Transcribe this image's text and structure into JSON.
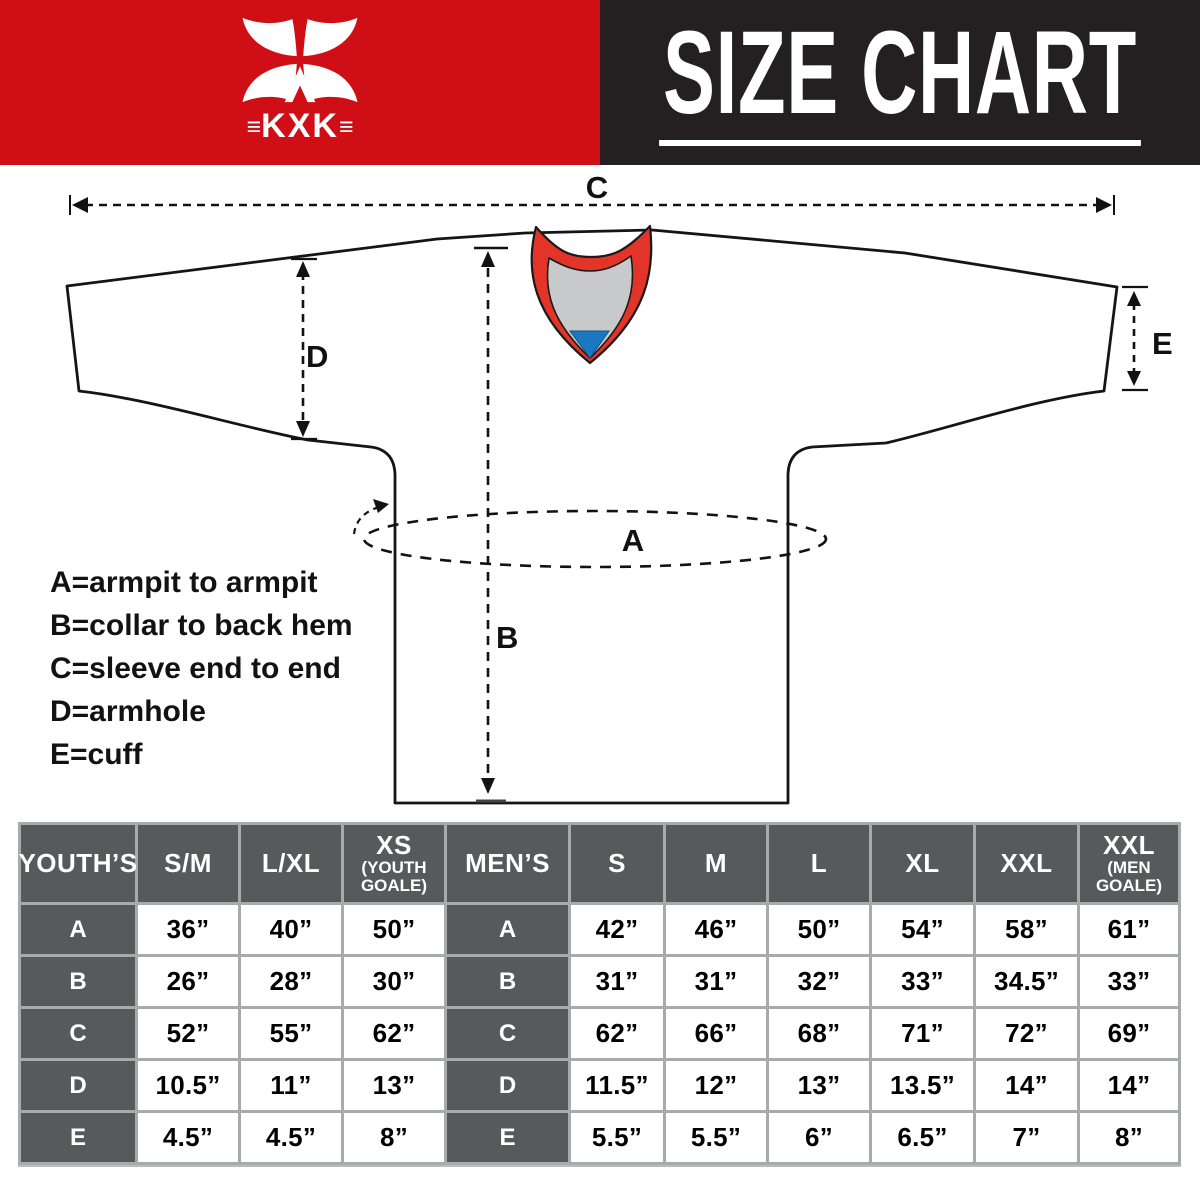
{
  "header": {
    "brand": "KXK",
    "brand_bar": "≡",
    "title": "SIZE CHART"
  },
  "colors": {
    "header_red": "#cf0e15",
    "header_black": "#241f20",
    "collar_red": "#e3342a",
    "collar_gray": "#c8c9ca",
    "collar_blue": "#1a78c2",
    "table_header_gray": "#58595b",
    "table_grid_gray": "#a8aaad"
  },
  "diagram": {
    "labels": {
      "a": "A",
      "b": "B",
      "c": "C",
      "d": "D",
      "e": "E"
    }
  },
  "legend": {
    "lines": [
      "A=armpit to armpit",
      "B=collar to back hem",
      "C=sleeve end to end",
      "D=armhole",
      "E=cuff"
    ]
  },
  "table": {
    "columns": [
      {
        "label": "YOUTH’S"
      },
      {
        "label": "S/M"
      },
      {
        "label": "L/XL"
      },
      {
        "label": "XS",
        "sub": "(YOUTH GOALE)"
      },
      {
        "label": "MEN’S"
      },
      {
        "label": "S"
      },
      {
        "label": "M"
      },
      {
        "label": "L"
      },
      {
        "label": "XL"
      },
      {
        "label": "XXL"
      },
      {
        "label": "XXL",
        "sub": "(MEN GOALE)"
      }
    ],
    "rows": [
      {
        "key": "A",
        "youth": [
          "36”",
          "40”",
          "50”"
        ],
        "men": [
          "42”",
          "46”",
          "50”",
          "54”",
          "58”",
          "61”"
        ]
      },
      {
        "key": "B",
        "youth": [
          "26”",
          "28”",
          "30”"
        ],
        "men": [
          "31”",
          "31”",
          "32”",
          "33”",
          "34.5”",
          "33”"
        ]
      },
      {
        "key": "C",
        "youth": [
          "52”",
          "55”",
          "62”"
        ],
        "men": [
          "62”",
          "66”",
          "68”",
          "71”",
          "72”",
          "69”"
        ]
      },
      {
        "key": "D",
        "youth": [
          "10.5”",
          "11”",
          "13”"
        ],
        "men": [
          "11.5”",
          "12”",
          "13”",
          "13.5”",
          "14”",
          "14”"
        ]
      },
      {
        "key": "E",
        "youth": [
          "4.5”",
          "4.5”",
          "8”"
        ],
        "men": [
          "5.5”",
          "5.5”",
          "6”",
          "6.5”",
          "7”",
          "8”"
        ]
      }
    ]
  }
}
